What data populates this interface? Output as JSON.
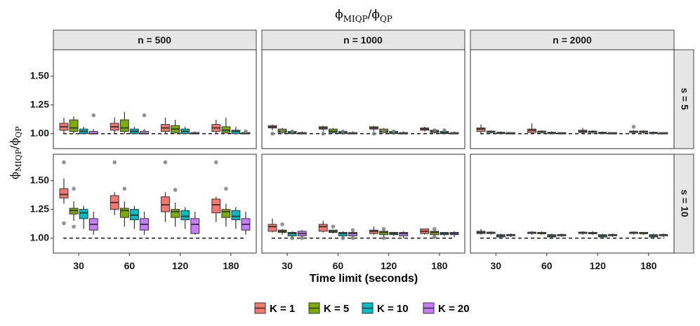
{
  "chart_data": {
    "type": "boxplot",
    "title": "ϕ_MIQP/ϕ_QP",
    "title_main": "ϕ",
    "title_sub1": "MIQP",
    "title_slash": "/",
    "title_sub2": "QP",
    "xlabel": "Time limit (seconds)",
    "ylabel_main": "ϕ",
    "ylabel_sub1": "MIQP",
    "ylabel_slash": "/",
    "ylabel_sub2": "QP",
    "ylim": [
      0.87,
      1.73
    ],
    "yticks": [
      1.0,
      1.25,
      1.5
    ],
    "ytick_labels": [
      "1.00",
      "1.25",
      "1.50"
    ],
    "reference_line": 1.0,
    "x_categories": [
      "30",
      "60",
      "120",
      "180"
    ],
    "columns": [
      "n = 500",
      "n = 1000",
      "n = 2000"
    ],
    "rows": [
      "s = 5",
      "s = 10"
    ],
    "groups": [
      {
        "label": "K = 1",
        "color": "#F8766D"
      },
      {
        "label": "K = 5",
        "color": "#7CAE00"
      },
      {
        "label": "K = 10",
        "color": "#00BFC4"
      },
      {
        "label": "K = 20",
        "color": "#C77CFF"
      }
    ],
    "panels": [
      {
        "row": 0,
        "col": 0,
        "boxes": [
          [
            [
              1.0,
              1.03,
              1.06,
              1.09,
              1.14,
              []
            ],
            [
              1.0,
              1.02,
              1.05,
              1.12,
              1.15,
              []
            ],
            [
              1.0,
              1.0,
              1.02,
              1.04,
              1.06,
              []
            ],
            [
              1.0,
              1.0,
              1.0,
              1.02,
              1.04,
              [
                1.16
              ]
            ]
          ],
          [
            [
              1.0,
              1.03,
              1.06,
              1.09,
              1.14,
              []
            ],
            [
              1.0,
              1.02,
              1.05,
              1.12,
              1.19,
              []
            ],
            [
              1.0,
              1.0,
              1.02,
              1.04,
              1.06,
              []
            ],
            [
              1.0,
              1.0,
              1.0,
              1.02,
              1.04,
              [
                1.16,
                1.02
              ]
            ]
          ],
          [
            [
              1.0,
              1.02,
              1.05,
              1.08,
              1.14,
              []
            ],
            [
              1.0,
              1.01,
              1.04,
              1.07,
              1.12,
              []
            ],
            [
              1.0,
              1.0,
              1.02,
              1.04,
              1.06,
              []
            ],
            [
              1.0,
              1.0,
              1.0,
              1.01,
              1.02,
              []
            ]
          ],
          [
            [
              1.0,
              1.02,
              1.05,
              1.08,
              1.12,
              []
            ],
            [
              1.0,
              1.01,
              1.03,
              1.06,
              1.14,
              []
            ],
            [
              1.0,
              1.0,
              1.02,
              1.03,
              1.06,
              []
            ],
            [
              1.0,
              1.0,
              1.0,
              1.01,
              1.02,
              [
                1.02
              ]
            ]
          ]
        ]
      },
      {
        "row": 0,
        "col": 1,
        "boxes": [
          [
            [
              1.03,
              1.05,
              1.06,
              1.07,
              1.08,
              [
                1.0
              ]
            ],
            [
              1.0,
              1.01,
              1.02,
              1.04,
              1.05,
              [
                1.02
              ]
            ],
            [
              1.0,
              1.0,
              1.01,
              1.02,
              1.03,
              [
                1.02
              ]
            ],
            [
              1.0,
              1.0,
              1.0,
              1.01,
              1.02,
              []
            ]
          ],
          [
            [
              1.02,
              1.04,
              1.05,
              1.06,
              1.07,
              [
                1.0
              ]
            ],
            [
              1.0,
              1.01,
              1.02,
              1.04,
              1.05,
              []
            ],
            [
              1.0,
              1.0,
              1.01,
              1.02,
              1.03,
              [
                1.02
              ]
            ],
            [
              1.0,
              1.0,
              1.0,
              1.01,
              1.02,
              []
            ]
          ],
          [
            [
              1.02,
              1.04,
              1.05,
              1.06,
              1.07,
              [
                1.0
              ]
            ],
            [
              1.0,
              1.01,
              1.02,
              1.04,
              1.05,
              [
                1.02
              ]
            ],
            [
              1.0,
              1.0,
              1.01,
              1.02,
              1.03,
              [
                1.02
              ]
            ],
            [
              1.0,
              1.0,
              1.0,
              1.01,
              1.02,
              []
            ]
          ],
          [
            [
              1.02,
              1.03,
              1.04,
              1.05,
              1.06,
              []
            ],
            [
              1.0,
              1.01,
              1.02,
              1.03,
              1.04,
              [
                1.03
              ]
            ],
            [
              1.0,
              1.0,
              1.01,
              1.02,
              1.03,
              [
                1.03
              ]
            ],
            [
              1.0,
              1.0,
              1.0,
              1.01,
              1.02,
              []
            ]
          ]
        ]
      },
      {
        "row": 0,
        "col": 2,
        "boxes": [
          [
            [
              1.0,
              1.02,
              1.04,
              1.05,
              1.08,
              []
            ],
            [
              1.0,
              1.01,
              1.02,
              1.02,
              1.03,
              []
            ],
            [
              1.0,
              1.0,
              1.01,
              1.01,
              1.02,
              []
            ],
            [
              1.0,
              1.0,
              1.0,
              1.01,
              1.01,
              []
            ]
          ],
          [
            [
              1.0,
              1.01,
              1.03,
              1.04,
              1.09,
              []
            ],
            [
              1.0,
              1.01,
              1.02,
              1.02,
              1.03,
              []
            ],
            [
              1.0,
              1.0,
              1.01,
              1.01,
              1.02,
              []
            ],
            [
              1.0,
              1.0,
              1.0,
              1.01,
              1.01,
              []
            ]
          ],
          [
            [
              1.0,
              1.01,
              1.02,
              1.03,
              1.05,
              []
            ],
            [
              1.0,
              1.01,
              1.02,
              1.02,
              1.03,
              []
            ],
            [
              1.0,
              1.0,
              1.01,
              1.01,
              1.02,
              []
            ],
            [
              1.0,
              1.0,
              1.0,
              1.01,
              1.01,
              []
            ]
          ],
          [
            [
              1.0,
              1.01,
              1.02,
              1.02,
              1.03,
              [
                1.06
              ]
            ],
            [
              1.0,
              1.01,
              1.02,
              1.02,
              1.03,
              []
            ],
            [
              1.0,
              1.0,
              1.01,
              1.01,
              1.02,
              []
            ],
            [
              1.0,
              1.0,
              1.0,
              1.01,
              1.01,
              []
            ]
          ]
        ]
      },
      {
        "row": 1,
        "col": 0,
        "boxes": [
          [
            [
              1.3,
              1.35,
              1.38,
              1.43,
              1.52,
              [
                1.66,
                1.13
              ]
            ],
            [
              1.15,
              1.21,
              1.24,
              1.26,
              1.32,
              [
                1.43,
                1.1
              ]
            ],
            [
              1.08,
              1.17,
              1.22,
              1.25,
              1.28,
              []
            ],
            [
              1.03,
              1.07,
              1.12,
              1.17,
              1.23,
              []
            ]
          ],
          [
            [
              1.2,
              1.25,
              1.31,
              1.37,
              1.4,
              [
                1.66
              ]
            ],
            [
              1.1,
              1.18,
              1.24,
              1.26,
              1.32,
              [
                1.43
              ]
            ],
            [
              1.08,
              1.16,
              1.2,
              1.25,
              1.28,
              []
            ],
            [
              1.03,
              1.07,
              1.12,
              1.17,
              1.23,
              []
            ]
          ],
          [
            [
              1.14,
              1.23,
              1.29,
              1.36,
              1.4,
              [
                1.66
              ]
            ],
            [
              1.1,
              1.18,
              1.23,
              1.25,
              1.31,
              [
                1.42
              ]
            ],
            [
              1.08,
              1.16,
              1.19,
              1.24,
              1.27,
              []
            ],
            [
              1.03,
              1.04,
              1.12,
              1.17,
              1.23,
              []
            ]
          ],
          [
            [
              1.14,
              1.22,
              1.29,
              1.34,
              1.36,
              [
                1.66
              ]
            ],
            [
              1.1,
              1.18,
              1.23,
              1.25,
              1.3,
              [
                1.43
              ]
            ],
            [
              1.08,
              1.16,
              1.19,
              1.24,
              1.27,
              []
            ],
            [
              1.03,
              1.07,
              1.12,
              1.17,
              1.23,
              []
            ]
          ]
        ]
      },
      {
        "row": 1,
        "col": 1,
        "boxes": [
          [
            [
              1.05,
              1.06,
              1.1,
              1.12,
              1.17,
              []
            ],
            [
              1.03,
              1.05,
              1.06,
              1.07,
              1.08,
              [
                1.12
              ]
            ],
            [
              1.0,
              1.02,
              1.04,
              1.05,
              1.06,
              [
                1.0
              ]
            ],
            [
              1.0,
              1.02,
              1.04,
              1.06,
              1.07,
              [
                1.0
              ]
            ]
          ],
          [
            [
              1.05,
              1.06,
              1.1,
              1.12,
              1.15,
              []
            ],
            [
              1.04,
              1.05,
              1.06,
              1.07,
              1.07,
              [
                1.1
              ]
            ],
            [
              1.0,
              1.02,
              1.04,
              1.05,
              1.06,
              [
                1.0
              ]
            ],
            [
              1.0,
              1.02,
              1.04,
              1.05,
              1.06,
              [
                1.0,
                1.07
              ]
            ]
          ],
          [
            [
              1.03,
              1.04,
              1.06,
              1.07,
              1.1,
              []
            ],
            [
              1.0,
              1.03,
              1.05,
              1.06,
              1.07,
              [
                1.0,
                1.08
              ]
            ],
            [
              1.02,
              1.03,
              1.04,
              1.05,
              1.05,
              []
            ],
            [
              1.0,
              1.02,
              1.04,
              1.05,
              1.06,
              []
            ]
          ],
          [
            [
              1.03,
              1.04,
              1.06,
              1.08,
              1.08,
              []
            ],
            [
              1.0,
              1.03,
              1.05,
              1.06,
              1.07,
              [
                1.01,
                1.08
              ]
            ],
            [
              1.02,
              1.03,
              1.04,
              1.05,
              1.05,
              []
            ],
            [
              1.01,
              1.03,
              1.04,
              1.05,
              1.06,
              []
            ]
          ]
        ]
      },
      {
        "row": 1,
        "col": 2,
        "boxes": [
          [
            [
              1.03,
              1.04,
              1.05,
              1.06,
              1.08,
              []
            ],
            [
              1.03,
              1.04,
              1.05,
              1.05,
              1.06,
              []
            ],
            [
              1.0,
              1.01,
              1.02,
              1.03,
              1.04,
              []
            ],
            [
              1.01,
              1.02,
              1.03,
              1.03,
              1.04,
              []
            ]
          ],
          [
            [
              1.03,
              1.04,
              1.05,
              1.05,
              1.06,
              []
            ],
            [
              1.03,
              1.04,
              1.04,
              1.05,
              1.06,
              []
            ],
            [
              1.0,
              1.01,
              1.02,
              1.03,
              1.04,
              []
            ],
            [
              1.01,
              1.02,
              1.03,
              1.03,
              1.04,
              []
            ]
          ],
          [
            [
              1.03,
              1.04,
              1.05,
              1.05,
              1.06,
              []
            ],
            [
              1.03,
              1.04,
              1.04,
              1.05,
              1.06,
              []
            ],
            [
              1.0,
              1.01,
              1.02,
              1.03,
              1.04,
              []
            ],
            [
              1.01,
              1.02,
              1.03,
              1.03,
              1.04,
              []
            ]
          ],
          [
            [
              1.03,
              1.04,
              1.05,
              1.05,
              1.06,
              []
            ],
            [
              1.03,
              1.04,
              1.04,
              1.05,
              1.05,
              []
            ],
            [
              1.0,
              1.01,
              1.02,
              1.03,
              1.04,
              []
            ],
            [
              1.01,
              1.02,
              1.03,
              1.03,
              1.04,
              []
            ]
          ]
        ]
      }
    ]
  }
}
